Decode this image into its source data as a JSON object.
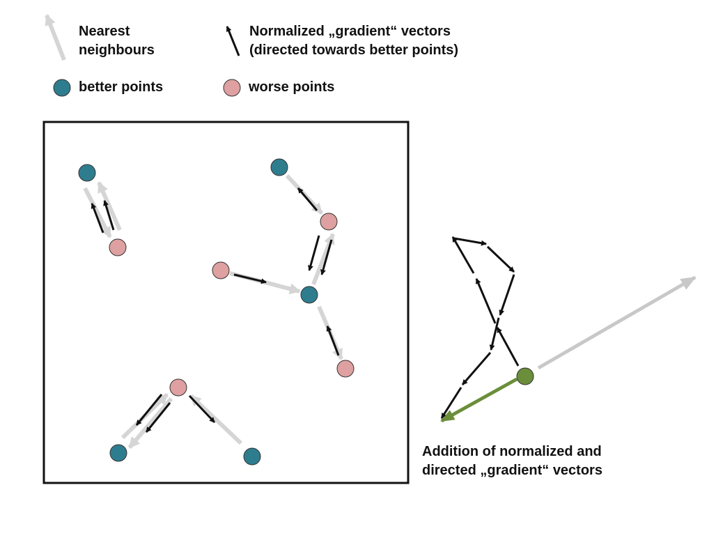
{
  "legend": {
    "nearest_label_1": "Nearest",
    "nearest_label_2": "neighbours",
    "gradient_label_1": "Normalized „gradient“ vectors",
    "gradient_label_2": "(directed towards better points)",
    "better_label": "better points",
    "worse_label": "worse points"
  },
  "caption": {
    "line1": "Addition of normalized and",
    "line2": "directed „gradient“ vectors"
  },
  "colors": {
    "better": "#2e7d8f",
    "worse": "#dea0a0",
    "neighbour_arrow": "#d5d5d5",
    "gradient_arrow": "#111111",
    "sum_arrow": "#6b8e3a",
    "sum_point": "#6b8e3a",
    "result_long_arrow": "#c8c8c8"
  }
}
